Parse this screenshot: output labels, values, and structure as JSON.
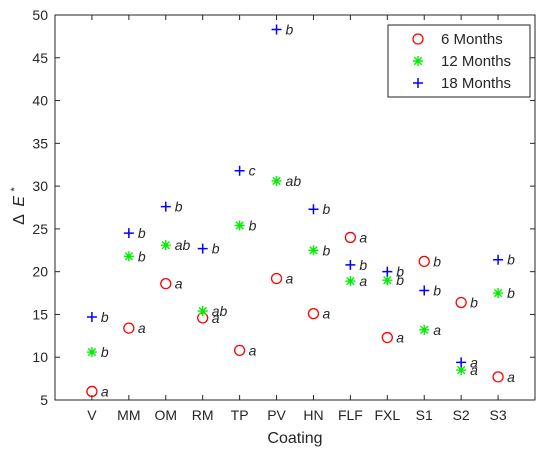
{
  "chart_data": {
    "type": "scatter",
    "xlabel": "Coating",
    "ylabel": "Δ E*",
    "ylabel_parts": {
      "delta": "Δ",
      "var": "E",
      "sup": "*"
    },
    "ylim": [
      5,
      50
    ],
    "yticks": [
      5,
      10,
      15,
      20,
      25,
      30,
      35,
      40,
      45,
      50
    ],
    "categories": [
      "V",
      "MM",
      "OM",
      "RM",
      "TP",
      "PV",
      "HN",
      "FLF",
      "FXL",
      "S1",
      "S2",
      "S3"
    ],
    "grid": false,
    "legend_position": "top-right",
    "series": [
      {
        "name": "6 Months",
        "marker": "circle",
        "color": "#ff0000",
        "values": [
          6.0,
          13.4,
          18.6,
          14.6,
          10.8,
          19.2,
          15.1,
          24.0,
          12.3,
          21.2,
          16.4,
          7.7
        ],
        "labels": [
          "a",
          "a",
          "a",
          "a",
          "a",
          "a",
          "a",
          "a",
          "a",
          "b",
          "b",
          "a"
        ]
      },
      {
        "name": "12 Months",
        "marker": "asterisk",
        "color": "#00ee00",
        "values": [
          10.6,
          21.8,
          23.1,
          15.4,
          25.4,
          30.6,
          22.5,
          18.9,
          19.0,
          13.2,
          8.5,
          17.5
        ],
        "labels": [
          "b",
          "b",
          "ab",
          "ab",
          "b",
          "ab",
          "b",
          "a",
          "b",
          "a",
          "a",
          "b"
        ]
      },
      {
        "name": "18 Months",
        "marker": "plus",
        "color": "#0000ff",
        "values": [
          14.7,
          24.5,
          27.6,
          22.7,
          31.8,
          48.3,
          27.3,
          20.8,
          20.0,
          17.8,
          9.4,
          21.4
        ],
        "labels": [
          "b",
          "b",
          "b",
          "b",
          "c",
          "b",
          "b",
          "b",
          "b",
          "b",
          "a",
          "b"
        ]
      }
    ]
  }
}
